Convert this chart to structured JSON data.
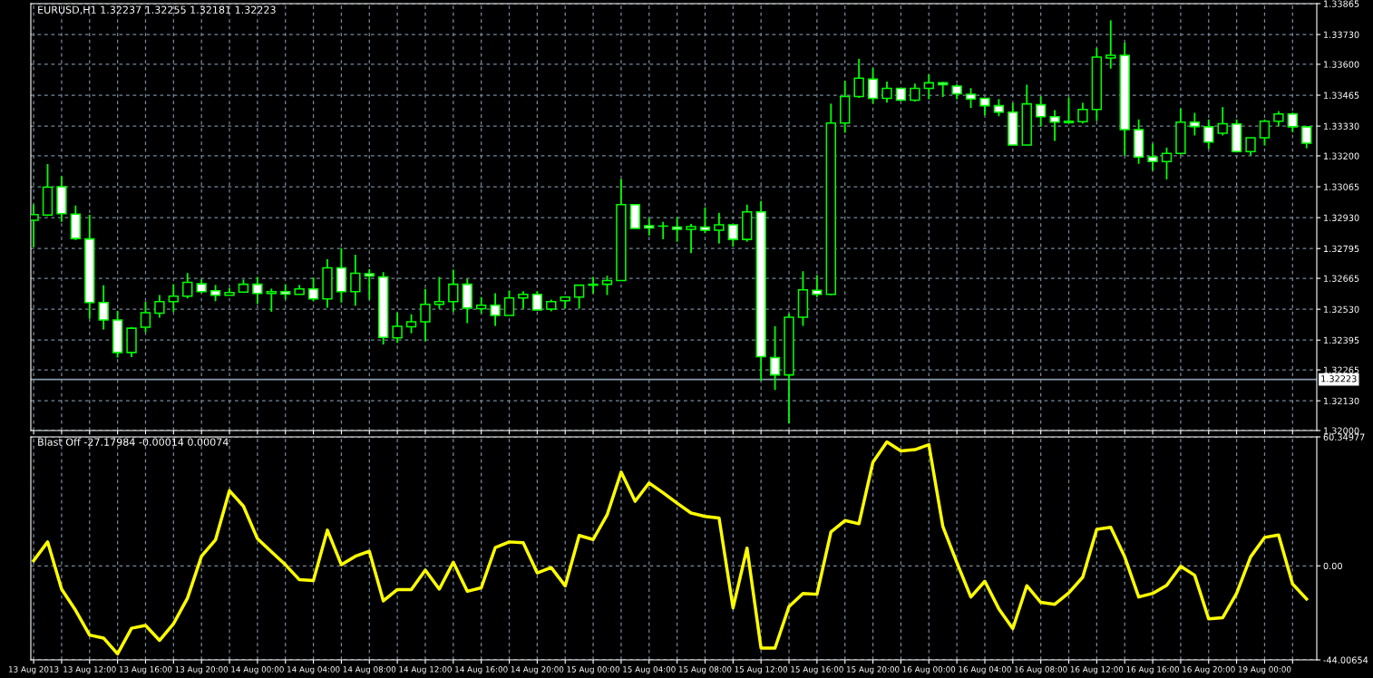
{
  "chart_data": [
    {
      "type": "candlestick",
      "title": "EURUSD,H1 1.32237 1.32255 1.32181 1.32223",
      "categories": [
        null,
        null,
        null,
        null,
        null,
        null,
        null,
        null,
        null,
        null,
        null,
        null,
        null,
        null,
        null,
        null,
        null,
        null,
        null,
        null,
        null,
        null,
        null,
        null,
        null,
        null,
        null,
        null,
        null,
        null,
        null,
        null,
        null,
        null,
        null,
        null,
        null,
        null,
        null,
        null,
        null,
        null,
        null,
        null,
        null,
        null,
        null,
        null,
        null,
        null,
        null,
        null,
        null,
        null,
        null,
        null,
        null,
        null,
        null,
        null,
        null,
        null,
        null,
        null,
        null,
        null,
        null,
        null,
        null,
        null,
        null,
        null,
        null,
        null,
        null,
        null,
        null,
        null,
        null,
        null,
        null,
        null,
        null,
        null,
        null,
        null,
        null,
        null,
        null,
        null,
        null,
        null
      ],
      "ohlc": [
        [
          1.32919,
          1.32988,
          1.32801,
          1.32943
        ],
        [
          1.32941,
          1.33164,
          1.32937,
          1.33063
        ],
        [
          1.33065,
          1.33111,
          1.32912,
          1.32947
        ],
        [
          1.32945,
          1.32983,
          1.32832,
          1.32839
        ],
        [
          1.32837,
          1.32943,
          1.32489,
          1.32559
        ],
        [
          1.32559,
          1.32635,
          1.32441,
          1.32483
        ],
        [
          1.32483,
          1.32523,
          1.32319,
          1.32341
        ],
        [
          1.32341,
          1.32452,
          1.32321,
          1.32447
        ],
        [
          1.32451,
          1.32563,
          1.32429,
          1.32515
        ],
        [
          1.32513,
          1.32592,
          1.32493,
          1.32563
        ],
        [
          1.32563,
          1.32639,
          1.32519,
          1.32587
        ],
        [
          1.32587,
          1.32688,
          1.32577,
          1.32647
        ],
        [
          1.32641,
          1.3266,
          1.32601,
          1.32607
        ],
        [
          1.32611,
          1.32636,
          1.32565,
          1.32591
        ],
        [
          1.32591,
          1.32623,
          1.32591,
          1.32603
        ],
        [
          1.32605,
          1.3266,
          1.32601,
          1.32639
        ],
        [
          1.32639,
          1.32671,
          1.32553,
          1.32599
        ],
        [
          1.32599,
          1.3262,
          1.32519,
          1.32607
        ],
        [
          1.32607,
          1.32639,
          1.32573,
          1.32596
        ],
        [
          1.32595,
          1.32636,
          1.32595,
          1.32619
        ],
        [
          1.32619,
          1.32668,
          1.32565,
          1.32575
        ],
        [
          1.32575,
          1.32748,
          1.32537,
          1.32711
        ],
        [
          1.32711,
          1.32797,
          1.32559,
          1.32607
        ],
        [
          1.32607,
          1.32768,
          1.32545,
          1.32687
        ],
        [
          1.32685,
          1.32705,
          1.32572,
          1.32675
        ],
        [
          1.32671,
          1.32692,
          1.32376,
          1.32407
        ],
        [
          1.32405,
          1.32516,
          1.32383,
          1.32455
        ],
        [
          1.32453,
          1.32508,
          1.32425,
          1.32475
        ],
        [
          1.32475,
          1.32619,
          1.32391,
          1.32551
        ],
        [
          1.32551,
          1.32671,
          1.32532,
          1.32563
        ],
        [
          1.32563,
          1.32703,
          1.32519,
          1.32639
        ],
        [
          1.32639,
          1.32663,
          1.32469,
          1.32535
        ],
        [
          1.32533,
          1.32583,
          1.32512,
          1.32547
        ],
        [
          1.32547,
          1.326,
          1.32457,
          1.32503
        ],
        [
          1.32503,
          1.32612,
          1.32503,
          1.32579
        ],
        [
          1.32579,
          1.32609,
          1.32532,
          1.32595
        ],
        [
          1.32595,
          1.32609,
          1.32527,
          1.32527
        ],
        [
          1.32531,
          1.32572,
          1.32521,
          1.32563
        ],
        [
          1.32567,
          1.32583,
          1.32532,
          1.32583
        ],
        [
          1.32583,
          1.32635,
          1.32532,
          1.32635
        ],
        [
          1.32635,
          1.32671,
          1.32599,
          1.32639
        ],
        [
          1.32639,
          1.32676,
          1.32592,
          1.32655
        ],
        [
          1.32655,
          1.33099,
          1.32655,
          1.32987
        ],
        [
          1.32987,
          1.32987,
          1.32883,
          1.32883
        ],
        [
          1.32895,
          1.32929,
          1.32852,
          1.32885
        ],
        [
          1.32893,
          1.32912,
          1.32836,
          1.32893
        ],
        [
          1.32889,
          1.32932,
          1.32825,
          1.32879
        ],
        [
          1.32879,
          1.32903,
          1.32775,
          1.32891
        ],
        [
          1.32889,
          1.32975,
          1.32863,
          1.32875
        ],
        [
          1.32875,
          1.32951,
          1.32817,
          1.32899
        ],
        [
          1.32899,
          1.32899,
          1.32804,
          1.32835
        ],
        [
          1.32835,
          1.32987,
          1.32825,
          1.32955
        ],
        [
          1.32955,
          1.33003,
          1.32217,
          1.32323
        ],
        [
          1.32319,
          1.32456,
          1.32177,
          1.32243
        ],
        [
          1.32243,
          1.32511,
          1.32032,
          1.32495
        ],
        [
          1.32495,
          1.32696,
          1.32457,
          1.32615
        ],
        [
          1.32613,
          1.32679,
          1.32583,
          1.32595
        ],
        [
          1.32595,
          1.33428,
          1.32591,
          1.33343
        ],
        [
          1.33343,
          1.33527,
          1.33301,
          1.33459
        ],
        [
          1.33459,
          1.33624,
          1.33453,
          1.33539
        ],
        [
          1.33535,
          1.33583,
          1.33428,
          1.33451
        ],
        [
          1.33451,
          1.33524,
          1.33432,
          1.33495
        ],
        [
          1.33495,
          1.33495,
          1.33439,
          1.33443
        ],
        [
          1.33443,
          1.33516,
          1.33437,
          1.33495
        ],
        [
          1.33495,
          1.33556,
          1.33447,
          1.33519
        ],
        [
          1.33519,
          1.33523,
          1.33457,
          1.33511
        ],
        [
          1.33505,
          1.33512,
          1.33447,
          1.33471
        ],
        [
          1.33469,
          1.33496,
          1.33409,
          1.33448
        ],
        [
          1.33451,
          1.33451,
          1.33377,
          1.33419
        ],
        [
          1.33419,
          1.33448,
          1.33373,
          1.33391
        ],
        [
          1.33391,
          1.33431,
          1.33247,
          1.33247
        ],
        [
          1.33247,
          1.33511,
          1.33247,
          1.33427
        ],
        [
          1.33423,
          1.3346,
          1.33327,
          1.33371
        ],
        [
          1.33371,
          1.334,
          1.33265,
          1.33347
        ],
        [
          1.33351,
          1.33455,
          1.33345,
          1.33345
        ],
        [
          1.33349,
          1.33431,
          1.33341,
          1.33403
        ],
        [
          1.33403,
          1.33671,
          1.33352,
          1.33631
        ],
        [
          1.33627,
          1.33792,
          1.33581,
          1.33639
        ],
        [
          1.33639,
          1.33695,
          1.33201,
          1.33315
        ],
        [
          1.33315,
          1.33359,
          1.33165,
          1.33195
        ],
        [
          1.33196,
          1.33253,
          1.33135,
          1.33175
        ],
        [
          1.33175,
          1.33236,
          1.33097,
          1.33211
        ],
        [
          1.33211,
          1.33407,
          1.33205,
          1.33347
        ],
        [
          1.33347,
          1.33388,
          1.33289,
          1.33328
        ],
        [
          1.33327,
          1.33359,
          1.33231,
          1.3326
        ],
        [
          1.33299,
          1.33413,
          1.33289,
          1.3334
        ],
        [
          1.33339,
          1.33359,
          1.33215,
          1.33219
        ],
        [
          1.33219,
          1.33279,
          1.33201,
          1.33279
        ],
        [
          1.33279,
          1.33359,
          1.33245,
          1.33351
        ],
        [
          1.33351,
          1.33395,
          1.33329,
          1.33383
        ],
        [
          1.33383,
          1.33389,
          1.33303,
          1.33327
        ],
        [
          1.33327,
          1.33327,
          1.33233,
          1.33255
        ]
      ],
      "ylim": [
        1.32,
        1.33865
      ],
      "yticks": [
        {
          "value": 1.32,
          "label": "1.32000"
        },
        {
          "value": 1.3213,
          "label": "1.32130"
        },
        {
          "value": 1.32265,
          "label": "1.32265"
        },
        {
          "value": 1.32395,
          "label": "1.32395"
        },
        {
          "value": 1.3253,
          "label": "1.32530"
        },
        {
          "value": 1.32665,
          "label": "1.32665"
        },
        {
          "value": 1.32795,
          "label": "1.32795"
        },
        {
          "value": 1.3293,
          "label": "1.32930"
        },
        {
          "value": 1.33065,
          "label": "1.33065"
        },
        {
          "value": 1.332,
          "label": "1.33200"
        },
        {
          "value": 1.3333,
          "label": "1.33330"
        },
        {
          "value": 1.33465,
          "label": "1.33465"
        },
        {
          "value": 1.336,
          "label": "1.33600"
        },
        {
          "value": 1.3373,
          "label": "1.33730"
        },
        {
          "value": 1.33865,
          "label": "1.33865"
        }
      ],
      "ref_lines": [
        {
          "axis": "y",
          "value": 1.32223,
          "label": "1.32223",
          "color": "#8899aa"
        }
      ],
      "grid": true,
      "tick_labels": "y"
    },
    {
      "type": "line",
      "title": "Blast Off -27.17984 -0.00014 0.00074",
      "categories": [
        "13 Aug 2013",
        null,
        null,
        null,
        "13 Aug 12:00",
        null,
        null,
        null,
        "13 Aug 16:00",
        null,
        null,
        null,
        "13 Aug 20:00",
        null,
        null,
        null,
        "14 Aug 00:00",
        null,
        null,
        null,
        "14 Aug 04:00",
        null,
        null,
        null,
        "14 Aug 08:00",
        null,
        null,
        null,
        "14 Aug 12:00",
        null,
        null,
        null,
        "14 Aug 16:00",
        null,
        null,
        null,
        "14 Aug 20:00",
        null,
        null,
        null,
        "15 Aug 00:00",
        null,
        null,
        null,
        "15 Aug 04:00",
        null,
        null,
        null,
        "15 Aug 08:00",
        null,
        null,
        null,
        "15 Aug 12:00",
        null,
        null,
        null,
        "15 Aug 16:00",
        null,
        null,
        null,
        "15 Aug 20:00",
        null,
        null,
        null,
        "16 Aug 00:00",
        null,
        null,
        null,
        "16 Aug 04:00",
        null,
        null,
        null,
        "16 Aug 08:00",
        null,
        null,
        null,
        "16 Aug 12:00",
        null,
        null,
        null,
        "16 Aug 16:00",
        null,
        null,
        null,
        "16 Aug 20:00",
        null,
        null,
        null,
        "19 Aug 00:00",
        null,
        null,
        null
      ],
      "series": [
        {
          "color": "#ffff00",
          "values": [
            2.4,
            11.2,
            -10.9,
            -20.8,
            -32.4,
            -33.8,
            -41.2,
            -29.2,
            -27.9,
            -34.9,
            -27.1,
            -15.1,
            4.5,
            12.1,
            35.2,
            27.9,
            12.7,
            6.6,
            0.5,
            -6.5,
            -6.9,
            16.7,
            0.5,
            4.5,
            6.8,
            -16.4,
            -11.1,
            -11.1,
            -2.0,
            -10.9,
            1.7,
            -11.9,
            -10.3,
            8.5,
            11.2,
            10.8,
            -3.3,
            -0.8,
            -9.4,
            14.2,
            12.3,
            23.9,
            43.9,
            30.2,
            38.8,
            34.2,
            29.3,
            24.7,
            23.1,
            22.4,
            -19.7,
            8.3,
            -38.5,
            -38.5,
            -19.1,
            -12.9,
            -13.3,
            15.9,
            21.2,
            19.7,
            48.5,
            58.0,
            53.8,
            54.4,
            56.7,
            18.4,
            1.5,
            -14.6,
            -7.2,
            -20.1,
            -29.4,
            -9.3,
            -17.1,
            -18.0,
            -12.7,
            -5.3,
            17.1,
            18.0,
            4.2,
            -14.6,
            -12.9,
            -9.1,
            -0.2,
            -4.4,
            -24.8,
            -24.3,
            -12.9,
            4.2,
            13.3,
            14.4,
            -8.5,
            -15.5
          ]
        }
      ],
      "ylim": [
        -44.00654,
        60.34977
      ],
      "yticks": [
        {
          "value": -44.00654,
          "label": "-44.00654"
        },
        {
          "value": 0,
          "label": "0.00"
        },
        {
          "value": 60.34977,
          "label": "60.34977"
        }
      ],
      "grid": true,
      "line_style": "solid",
      "marker": "none"
    }
  ]
}
